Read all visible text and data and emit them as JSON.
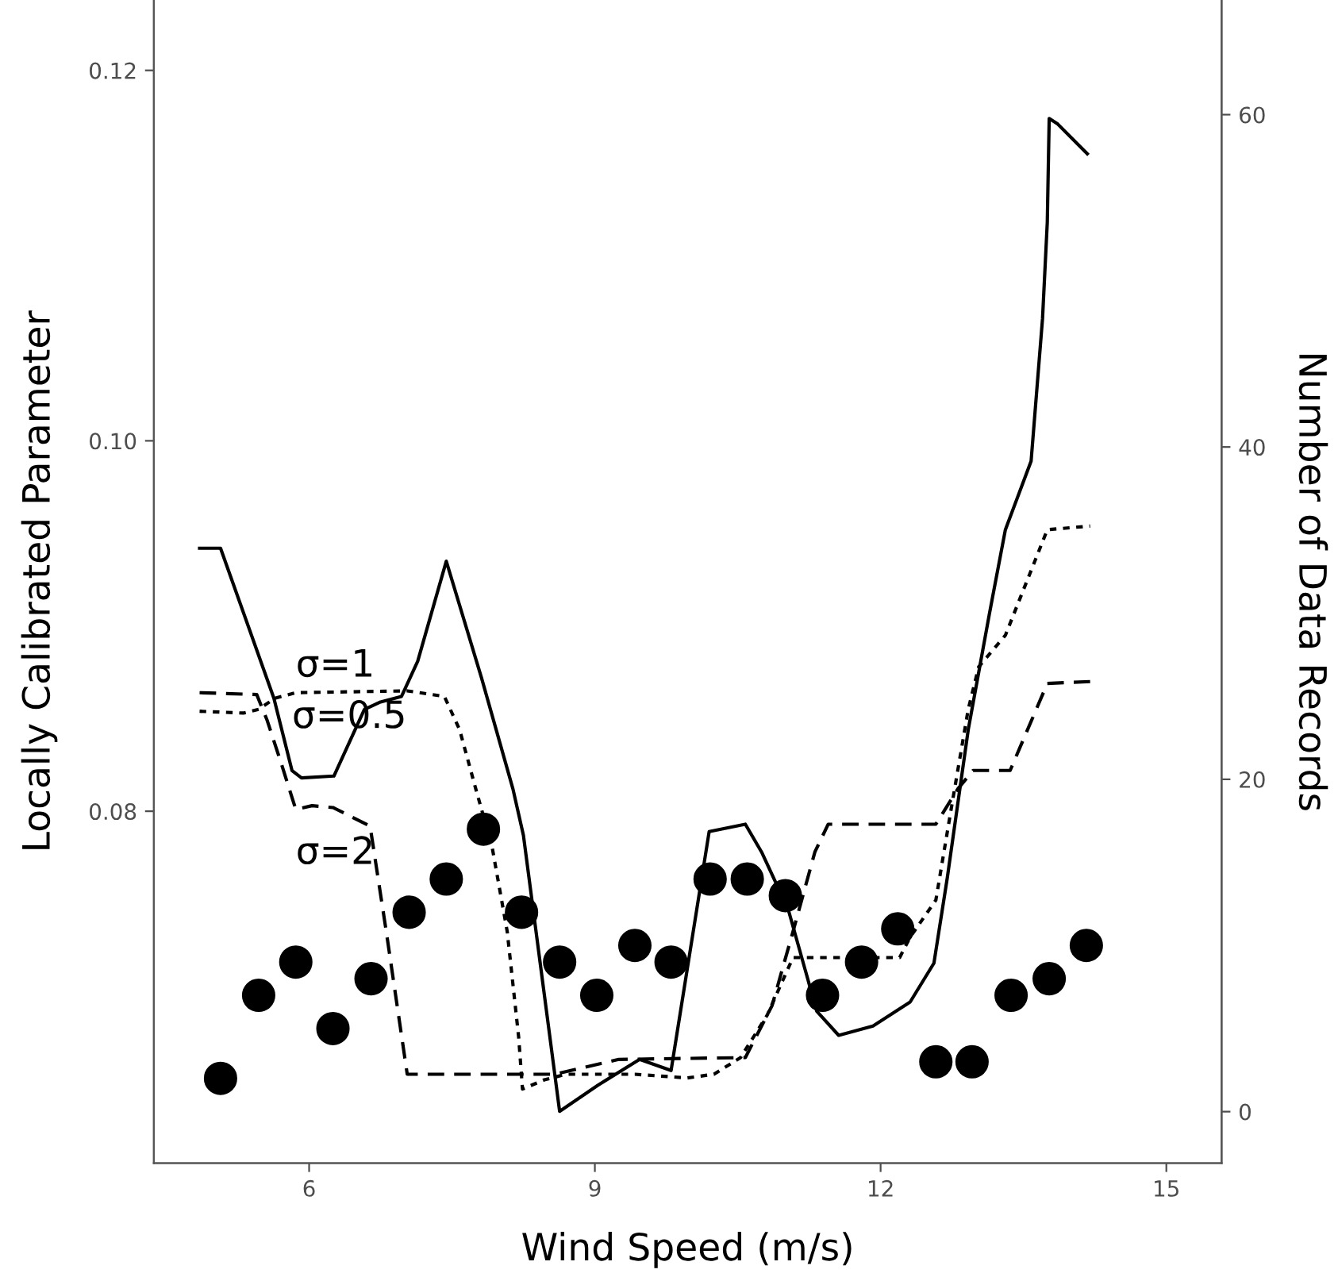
{
  "chart_data": {
    "type": "line",
    "xlabel": "Wind Speed (m/s)",
    "ylabel": "Locally Calibrated Parameter",
    "y2label": "Number of Data Records",
    "xlim": [
      4.37,
      15.58
    ],
    "xticks": [
      6,
      9,
      12,
      15
    ],
    "ylim": [
      0.061,
      0.1238
    ],
    "yticks": [
      0.08,
      {
        "value": 0.1,
        "label": "0.10"
      },
      0.12
    ],
    "y2lim": [
      -3.1,
      66.9
    ],
    "y2ticks": [
      0,
      20,
      40,
      60
    ],
    "grid": false,
    "legend": false,
    "series": [
      {
        "name": "σ=0.5",
        "color": "#000000",
        "line_style": "solid",
        "marker": "none",
        "x": [
          4.85,
          5.07,
          5.63,
          5.82,
          5.92,
          6.26,
          6.58,
          6.75,
          6.97,
          7.14,
          7.44,
          7.81,
          8.14,
          8.25,
          8.63,
          9.03,
          9.47,
          9.8,
          10.2,
          10.58,
          10.75,
          11.03,
          11.33,
          11.56,
          11.92,
          12.31,
          12.56,
          12.7,
          12.92,
          13.14,
          13.31,
          13.58,
          13.7,
          13.75,
          13.77,
          13.86,
          14.17
        ],
        "values": [
          0.0942,
          0.0942,
          0.0861,
          0.0822,
          0.0818,
          0.0819,
          0.0855,
          0.0859,
          0.0862,
          0.0881,
          0.0935,
          0.0872,
          0.0812,
          0.0787,
          0.0638,
          0.0652,
          0.0666,
          0.066,
          0.0789,
          0.0793,
          0.0778,
          0.0747,
          0.0692,
          0.0679,
          0.0684,
          0.0697,
          0.0718,
          0.0764,
          0.0844,
          0.0906,
          0.0952,
          0.0989,
          0.1066,
          0.1118,
          0.1174,
          0.1171,
          0.1155
        ]
      },
      {
        "name": "σ=1",
        "color": "#000000",
        "line_style": "dotted",
        "marker": "none",
        "x": [
          4.85,
          5.31,
          5.47,
          5.64,
          5.86,
          7.03,
          7.42,
          7.58,
          7.75,
          7.92,
          8.08,
          8.2,
          8.24,
          8.47,
          8.7,
          9.42,
          9.97,
          10.25,
          10.53,
          10.81,
          11.08,
          12.2,
          12.31,
          12.58,
          12.75,
          12.92,
          13.03,
          13.31,
          13.75,
          14.2
        ],
        "values": [
          0.0854,
          0.0853,
          0.0855,
          0.0861,
          0.0864,
          0.0865,
          0.0862,
          0.0844,
          0.0812,
          0.0781,
          0.0735,
          0.0678,
          0.065,
          0.0655,
          0.0658,
          0.0658,
          0.0656,
          0.0658,
          0.0667,
          0.069,
          0.0721,
          0.0721,
          0.0732,
          0.0752,
          0.0804,
          0.0855,
          0.0878,
          0.0895,
          0.0952,
          0.0954
        ]
      },
      {
        "name": "σ=2",
        "color": "#000000",
        "line_style": "dashed",
        "marker": "none",
        "x": [
          4.85,
          5.45,
          5.56,
          5.7,
          5.86,
          6.03,
          6.25,
          6.64,
          6.81,
          7.03,
          8.58,
          9.25,
          10.58,
          10.86,
          11.08,
          11.31,
          11.45,
          12.58,
          12.81,
          12.97,
          13.36,
          13.75,
          14.2
        ],
        "values": [
          0.0864,
          0.0863,
          0.0849,
          0.0827,
          0.0801,
          0.0803,
          0.0802,
          0.0792,
          0.0735,
          0.0658,
          0.0658,
          0.0666,
          0.0667,
          0.0695,
          0.0735,
          0.0778,
          0.0793,
          0.0793,
          0.0812,
          0.0822,
          0.0822,
          0.0869,
          0.087
        ]
      },
      {
        "type": "scatter",
        "axis": "y2",
        "color": "#000000",
        "marker": "circle",
        "x": [
          5.07,
          5.47,
          5.86,
          6.25,
          6.65,
          7.05,
          7.44,
          7.83,
          8.23,
          8.63,
          9.02,
          9.42,
          9.8,
          10.21,
          10.6,
          11.0,
          11.39,
          11.8,
          12.18,
          12.58,
          12.96,
          13.37,
          13.77,
          14.16
        ],
        "values": [
          2,
          7,
          9,
          5,
          8,
          12,
          14,
          17,
          12,
          9,
          7,
          10,
          9,
          14,
          14,
          13,
          7,
          9,
          11,
          3,
          3,
          7,
          8,
          10
        ]
      }
    ]
  }
}
